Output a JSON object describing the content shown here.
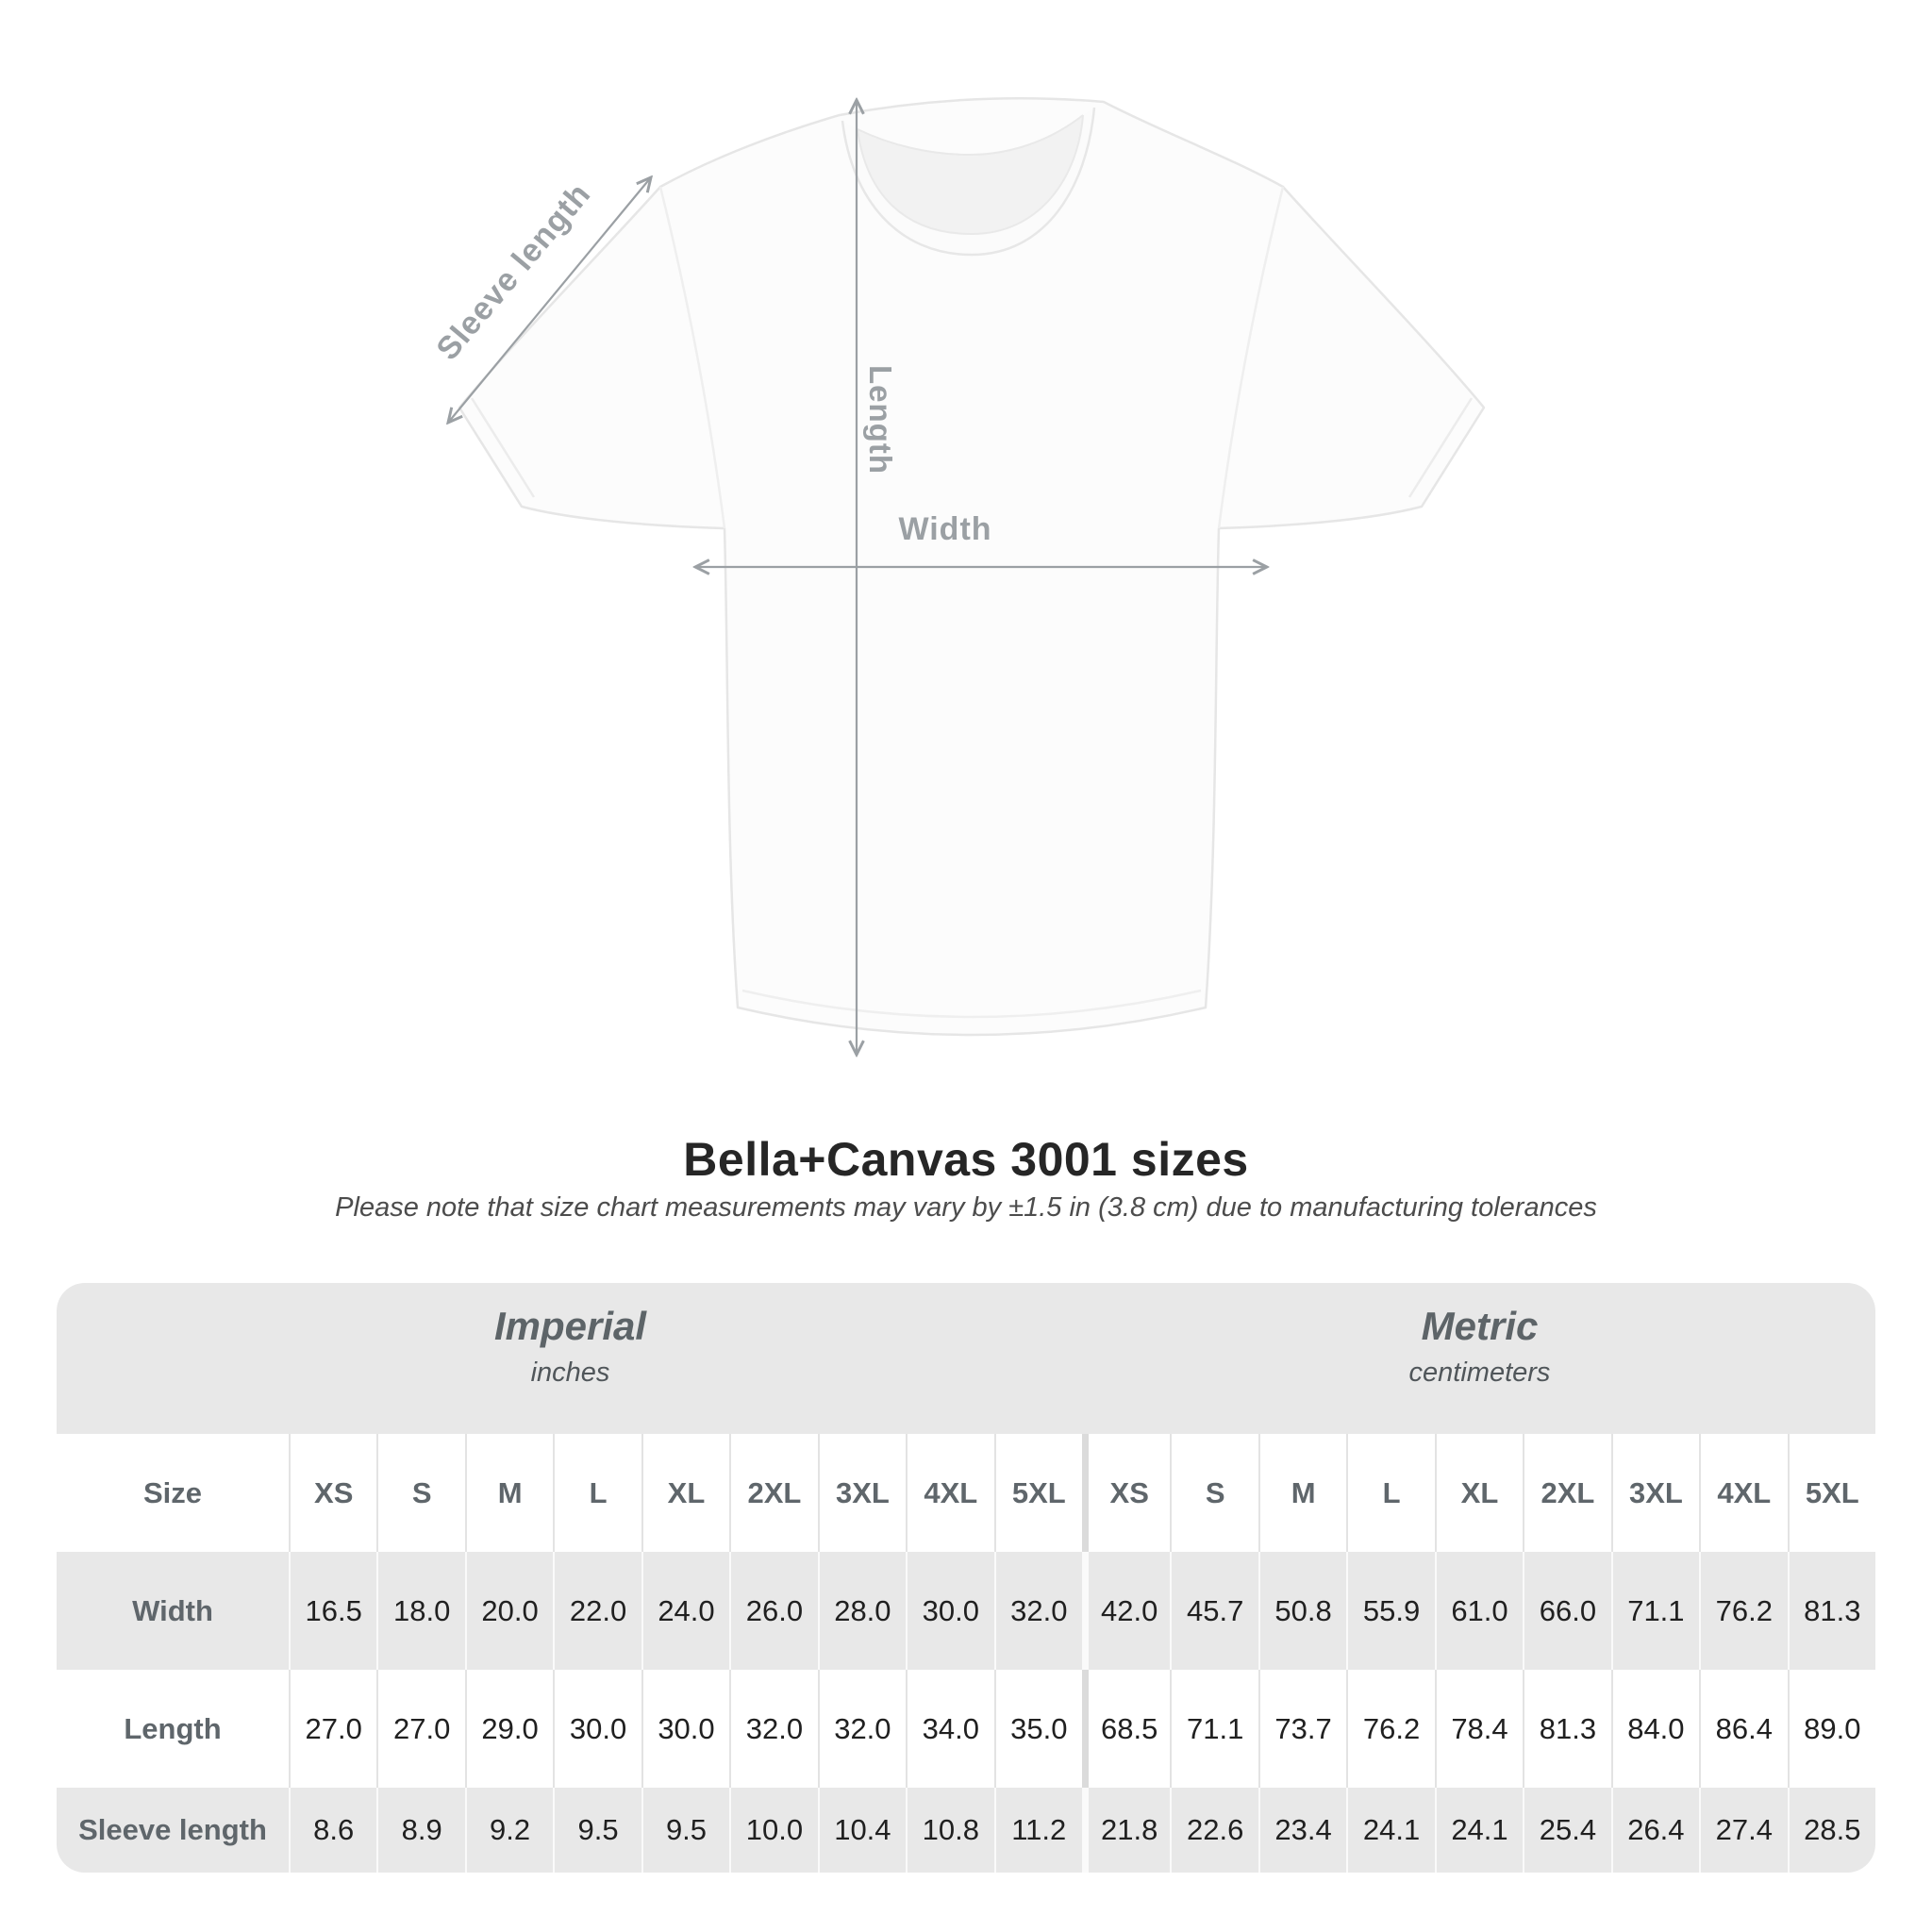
{
  "diagram": {
    "sleeve_label": "Sleeve length",
    "length_label": "Length",
    "width_label": "Width"
  },
  "header": {
    "title": "Bella+Canvas 3001 sizes",
    "subtitle": "Please note that size chart measurements may vary by ±1.5 in (3.8 cm) due to manufacturing tolerances"
  },
  "table": {
    "size_column_header": "Size",
    "sizes": [
      "XS",
      "S",
      "M",
      "L",
      "XL",
      "2XL",
      "3XL",
      "4XL",
      "5XL"
    ],
    "groups": [
      {
        "name": "Imperial",
        "unit": "inches"
      },
      {
        "name": "Metric",
        "unit": "centimeters"
      }
    ],
    "rows": [
      {
        "label": "Width",
        "imperial": [
          "16.5",
          "18.0",
          "20.0",
          "22.0",
          "24.0",
          "26.0",
          "28.0",
          "30.0",
          "32.0"
        ],
        "metric": [
          "42.0",
          "45.7",
          "50.8",
          "55.9",
          "61.0",
          "66.0",
          "71.1",
          "76.2",
          "81.3"
        ]
      },
      {
        "label": "Length",
        "imperial": [
          "27.0",
          "27.0",
          "29.0",
          "30.0",
          "30.0",
          "32.0",
          "32.0",
          "34.0",
          "35.0"
        ],
        "metric": [
          "68.5",
          "71.1",
          "73.7",
          "76.2",
          "78.4",
          "81.3",
          "84.0",
          "86.4",
          "89.0"
        ]
      },
      {
        "label": "Sleeve length",
        "imperial": [
          "8.6",
          "8.9",
          "9.2",
          "9.5",
          "9.5",
          "10.0",
          "10.4",
          "10.8",
          "11.2"
        ],
        "metric": [
          "21.8",
          "22.6",
          "23.4",
          "24.1",
          "24.1",
          "25.4",
          "26.4",
          "27.4",
          "28.5"
        ]
      }
    ]
  },
  "colors": {
    "band_gray": "#e8e8e8",
    "header_text": "#5f666b",
    "number_text": "#202020",
    "arrow_gray": "#9ba0a4"
  },
  "chart_data": {
    "type": "table",
    "title": "Bella+Canvas 3001 sizes",
    "note": "Please note that size chart measurements may vary by ±1.5 in (3.8 cm) due to manufacturing tolerances",
    "column_groups": [
      {
        "name": "Imperial",
        "unit": "inches",
        "columns": [
          "XS",
          "S",
          "M",
          "L",
          "XL",
          "2XL",
          "3XL",
          "4XL",
          "5XL"
        ]
      },
      {
        "name": "Metric",
        "unit": "centimeters",
        "columns": [
          "XS",
          "S",
          "M",
          "L",
          "XL",
          "2XL",
          "3XL",
          "4XL",
          "5XL"
        ]
      }
    ],
    "rows": [
      {
        "label": "Width",
        "imperial_in": [
          16.5,
          18.0,
          20.0,
          22.0,
          24.0,
          26.0,
          28.0,
          30.0,
          32.0
        ],
        "metric_cm": [
          42.0,
          45.7,
          50.8,
          55.9,
          61.0,
          66.0,
          71.1,
          76.2,
          81.3
        ]
      },
      {
        "label": "Length",
        "imperial_in": [
          27.0,
          27.0,
          29.0,
          30.0,
          30.0,
          32.0,
          32.0,
          34.0,
          35.0
        ],
        "metric_cm": [
          68.5,
          71.1,
          73.7,
          76.2,
          78.4,
          81.3,
          84.0,
          86.4,
          89.0
        ]
      },
      {
        "label": "Sleeve length",
        "imperial_in": [
          8.6,
          8.9,
          9.2,
          9.5,
          9.5,
          10.0,
          10.4,
          10.8,
          11.2
        ],
        "metric_cm": [
          21.8,
          22.6,
          23.4,
          24.1,
          24.1,
          25.4,
          26.4,
          27.4,
          28.5
        ]
      }
    ]
  }
}
